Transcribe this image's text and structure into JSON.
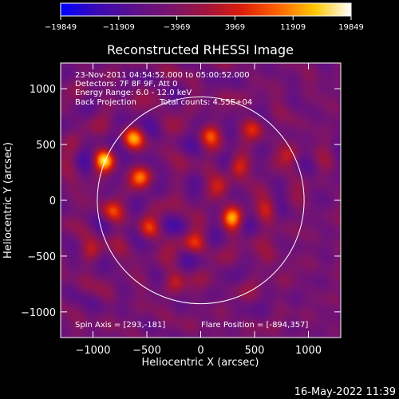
{
  "chart_data": {
    "type": "heatmap",
    "title": "Reconstructed RHESSI Image",
    "xlabel": "Heliocentric X (arcsec)",
    "ylabel": "Heliocentric Y (arcsec)",
    "xlim": [
      -1300,
      1300
    ],
    "ylim": [
      -1230,
      1230
    ],
    "xticks": [
      -1000,
      -500,
      0,
      500,
      1000
    ],
    "yticks": [
      -1000,
      -500,
      0,
      500,
      1000
    ],
    "xtick_labels": [
      "−1000",
      "−500",
      "0",
      "500",
      "1000"
    ],
    "ytick_labels": [
      "−1000",
      "−500",
      "0",
      "500",
      "1000"
    ],
    "colorbar": {
      "ticks": [
        -19849,
        -11909,
        -3969,
        3969,
        11909,
        19849
      ],
      "tick_labels": [
        "−19849",
        "−11909",
        "−3969",
        "3969",
        "11909",
        "19849"
      ],
      "colors": [
        "#0000ff",
        "#3a0ab4",
        "#5a0f8c",
        "#78146e",
        "#a0143c",
        "#dc1e0a",
        "#ff6400",
        "#ffc800",
        "#ffffff"
      ]
    },
    "annotations": {
      "time": "23-Nov-2011 04:54:52.000 to 05:00:52.000",
      "detectors": "Detectors: 7F 8F 9F, Att 0",
      "energy": "Energy Range: 6.0 - 12.0 keV",
      "method": "Back Projection",
      "counts": "Total counts: 4.55E+04",
      "spin_axis": "Spin Axis = [293,-181]",
      "flare_position": "Flare Position = [-894,357]"
    },
    "solar_disk": {
      "center": [
        0,
        0
      ],
      "radius": 960
    },
    "sources": [
      {
        "x": -894,
        "y": 357,
        "intensity": 1.0
      },
      {
        "x": 290,
        "y": -160,
        "intensity": 1.0
      },
      {
        "x": -620,
        "y": 560,
        "intensity": 0.7
      },
      {
        "x": -560,
        "y": 200,
        "intensity": 0.75
      },
      {
        "x": -830,
        "y": -100,
        "intensity": 0.6
      },
      {
        "x": -480,
        "y": -260,
        "intensity": 0.55
      },
      {
        "x": 80,
        "y": 590,
        "intensity": 0.6
      },
      {
        "x": 350,
        "y": 300,
        "intensity": 0.6
      },
      {
        "x": 180,
        "y": 120,
        "intensity": 0.5
      },
      {
        "x": -60,
        "y": -380,
        "intensity": 0.55
      },
      {
        "x": -230,
        "y": -730,
        "intensity": 0.5
      },
      {
        "x": 500,
        "y": 650,
        "intensity": 0.5
      },
      {
        "x": 620,
        "y": -80,
        "intensity": 0.45
      },
      {
        "x": 820,
        "y": 400,
        "intensity": 0.45
      },
      {
        "x": -1000,
        "y": -450,
        "intensity": 0.45
      },
      {
        "x": 640,
        "y": -520,
        "intensity": 0.4
      }
    ]
  },
  "footer": {
    "timestamp": "16-May-2022 11:39"
  }
}
